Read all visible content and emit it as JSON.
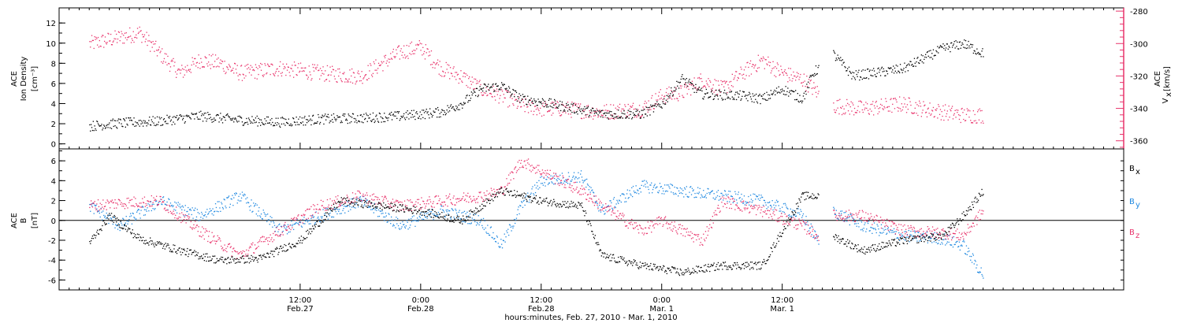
{
  "chart_data": [
    {
      "type": "scatter",
      "panel": "top",
      "ylabel": [
        "ACE",
        "Ion Density",
        "[cm⁻³]"
      ],
      "ylim": [
        -0.5,
        13.5
      ],
      "yticks": [
        0,
        2,
        4,
        6,
        8,
        10,
        12
      ],
      "ylabel_right": [
        "V",
        "x",
        "ACE",
        "[km/s]"
      ],
      "ylim_right": [
        -365,
        -278
      ],
      "yticks_right": [
        -360,
        -340,
        -320,
        -300,
        -280
      ],
      "series": [
        {
          "color": "#000000",
          "axis": "left",
          "knots": [
            [
              3,
              1.8
            ],
            [
              6,
              2.1
            ],
            [
              10,
              2.3
            ],
            [
              14,
              2.8
            ],
            [
              18,
              2.4
            ],
            [
              22,
              2.2
            ],
            [
              26,
              2.5
            ],
            [
              30,
              2.6
            ],
            [
              34,
              2.8
            ],
            [
              38,
              3.2
            ],
            [
              40,
              4.0
            ],
            [
              42,
              5.5
            ],
            [
              44,
              5.8
            ],
            [
              46,
              4.5
            ],
            [
              48,
              4.2
            ],
            [
              50,
              3.8
            ],
            [
              54,
              3.0
            ],
            [
              58,
              3.0
            ],
            [
              60,
              4.0
            ],
            [
              62,
              6.5
            ],
            [
              64,
              5.0
            ],
            [
              68,
              4.8
            ],
            [
              70,
              4.5
            ],
            [
              72,
              5.5
            ],
            [
              74,
              4.5
            ],
            [
              75,
              7.0
            ],
            [
              77,
              9.0
            ],
            [
              79,
              6.8
            ],
            [
              82,
              7.2
            ],
            [
              84,
              7.5
            ],
            [
              86,
              8.5
            ],
            [
              88,
              9.5
            ],
            [
              90,
              10.0
            ],
            [
              92,
              9.0
            ]
          ],
          "gaps": [
            [
              75.6,
              77.0
            ],
            [
              93.0,
              999
            ]
          ]
        },
        {
          "color": "#e8336b",
          "axis": "right",
          "knots": [
            [
              3,
              -300
            ],
            [
              6,
              -296
            ],
            [
              8,
              -293
            ],
            [
              10,
              -306
            ],
            [
              12,
              -318
            ],
            [
              14,
              -310
            ],
            [
              16,
              -312
            ],
            [
              18,
              -318
            ],
            [
              22,
              -315
            ],
            [
              26,
              -318
            ],
            [
              30,
              -320
            ],
            [
              34,
              -305
            ],
            [
              36,
              -302
            ],
            [
              38,
              -315
            ],
            [
              40,
              -320
            ],
            [
              42,
              -328
            ],
            [
              44,
              -332
            ],
            [
              46,
              -338
            ],
            [
              48,
              -340
            ],
            [
              50,
              -340
            ],
            [
              54,
              -342
            ],
            [
              58,
              -340
            ],
            [
              60,
              -332
            ],
            [
              62,
              -330
            ],
            [
              64,
              -322
            ],
            [
              66,
              -328
            ],
            [
              68,
              -318
            ],
            [
              70,
              -310
            ],
            [
              72,
              -318
            ],
            [
              74,
              -322
            ],
            [
              75.5,
              -330
            ],
            [
              77,
              -338
            ],
            [
              80,
              -340
            ],
            [
              84,
              -337
            ],
            [
              86,
              -340
            ],
            [
              88,
              -342
            ],
            [
              90,
              -344
            ],
            [
              92,
              -344
            ]
          ],
          "gaps": [
            [
              75.6,
              77.0
            ],
            [
              93.0,
              999
            ]
          ]
        }
      ]
    },
    {
      "type": "scatter",
      "panel": "bottom",
      "ylabel": [
        "ACE",
        "B",
        "[nT]"
      ],
      "ylim": [
        -7.0,
        7.2
      ],
      "yticks": [
        -6,
        -4,
        -2,
        0,
        2,
        4,
        6
      ],
      "zero_line": true,
      "series": [
        {
          "name": "B",
          "subscript": "x",
          "color": "#000000",
          "knots": [
            [
              3,
              -2.2
            ],
            [
              5,
              0.5
            ],
            [
              8,
              -1.8
            ],
            [
              12,
              -3.0
            ],
            [
              16,
              -4.0
            ],
            [
              20,
              -3.8
            ],
            [
              24,
              -2.0
            ],
            [
              28,
              2.0
            ],
            [
              32,
              1.5
            ],
            [
              36,
              1.0
            ],
            [
              40,
              0.0
            ],
            [
              44,
              3.0
            ],
            [
              48,
              2.0
            ],
            [
              52,
              1.5
            ],
            [
              54,
              -3.5
            ],
            [
              58,
              -4.5
            ],
            [
              62,
              -5.2
            ],
            [
              66,
              -4.5
            ],
            [
              70,
              -4.5
            ],
            [
              74,
              2.5
            ],
            [
              75.5,
              2.5
            ],
            [
              77,
              -1.5
            ],
            [
              80,
              -3.0
            ],
            [
              84,
              -2.0
            ],
            [
              88,
              -1.5
            ],
            [
              90,
              0.5
            ],
            [
              92,
              3.0
            ]
          ],
          "gaps": [
            [
              75.6,
              77.0
            ],
            [
              93.0,
              999
            ]
          ]
        },
        {
          "name": "B",
          "subscript": "y",
          "color": "#1f88e0",
          "knots": [
            [
              3,
              1.5
            ],
            [
              6,
              -0.5
            ],
            [
              10,
              2.0
            ],
            [
              14,
              0.5
            ],
            [
              18,
              2.5
            ],
            [
              22,
              -1.0
            ],
            [
              26,
              0.5
            ],
            [
              30,
              2.0
            ],
            [
              34,
              -0.5
            ],
            [
              38,
              1.0
            ],
            [
              42,
              0.0
            ],
            [
              44,
              -2.5
            ],
            [
              46,
              1.5
            ],
            [
              48,
              4.0
            ],
            [
              52,
              4.5
            ],
            [
              54,
              1.0
            ],
            [
              58,
              3.5
            ],
            [
              62,
              3.0
            ],
            [
              66,
              2.5
            ],
            [
              70,
              2.0
            ],
            [
              74,
              0.5
            ],
            [
              75.5,
              -2.0
            ],
            [
              77,
              1.0
            ],
            [
              80,
              -0.5
            ],
            [
              84,
              -1.5
            ],
            [
              88,
              -1.8
            ],
            [
              90,
              -2.5
            ],
            [
              92,
              -5.5
            ]
          ],
          "gaps": [
            [
              75.6,
              77.0
            ],
            [
              93.0,
              999
            ]
          ]
        },
        {
          "name": "B",
          "subscript": "z",
          "color": "#e8336b",
          "knots": [
            [
              3,
              1.5
            ],
            [
              6,
              1.8
            ],
            [
              10,
              2.0
            ],
            [
              14,
              -1.0
            ],
            [
              18,
              -3.5
            ],
            [
              22,
              -1.0
            ],
            [
              26,
              1.5
            ],
            [
              30,
              2.5
            ],
            [
              34,
              1.5
            ],
            [
              38,
              2.0
            ],
            [
              42,
              2.5
            ],
            [
              44,
              3.0
            ],
            [
              46,
              6.0
            ],
            [
              48,
              5.0
            ],
            [
              52,
              3.0
            ],
            [
              54,
              1.5
            ],
            [
              58,
              -1.0
            ],
            [
              60,
              0.0
            ],
            [
              62,
              -1.0
            ],
            [
              64,
              -2.0
            ],
            [
              66,
              2.0
            ],
            [
              70,
              1.0
            ],
            [
              74,
              -0.5
            ],
            [
              75.5,
              -1.5
            ],
            [
              77,
              0.5
            ],
            [
              80,
              0.5
            ],
            [
              84,
              -1.0
            ],
            [
              88,
              -1.2
            ],
            [
              90,
              -1.5
            ],
            [
              92,
              1.0
            ]
          ],
          "gaps": [
            [
              75.6,
              77.0
            ],
            [
              93.0,
              999
            ]
          ]
        }
      ]
    }
  ],
  "xaxis": {
    "xlim": [
      0,
      106
    ],
    "ticks": [
      {
        "hours": 24,
        "line1": "12:00",
        "line2": "Feb.27"
      },
      {
        "hours": 36,
        "line1": "0:00",
        "line2": "Feb.28"
      },
      {
        "hours": 48,
        "line1": "12:00",
        "line2": "Feb.28"
      },
      {
        "hours": 60,
        "line1": "0:00",
        "line2": "Mar. 1"
      },
      {
        "hours": 72,
        "line1": "12:00",
        "line2": "Mar. 1"
      }
    ],
    "xlabel": "hours:minutes, Feb. 27, 2010 - Mar. 1, 2010"
  }
}
